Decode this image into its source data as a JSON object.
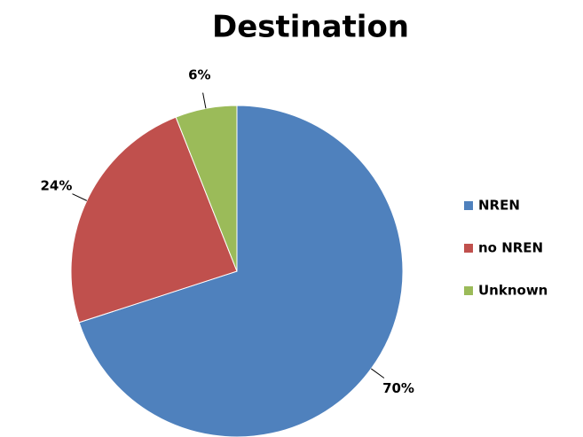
{
  "chart_data": {
    "type": "pie",
    "title": "Destination",
    "categories": [
      "NREN",
      "no NREN",
      "Unknown"
    ],
    "values": [
      70,
      24,
      6
    ],
    "value_labels": [
      "70%",
      "24%",
      "6%"
    ],
    "colors": [
      "#4f81bd",
      "#c0504d",
      "#9bbb59"
    ],
    "legend": "right"
  }
}
